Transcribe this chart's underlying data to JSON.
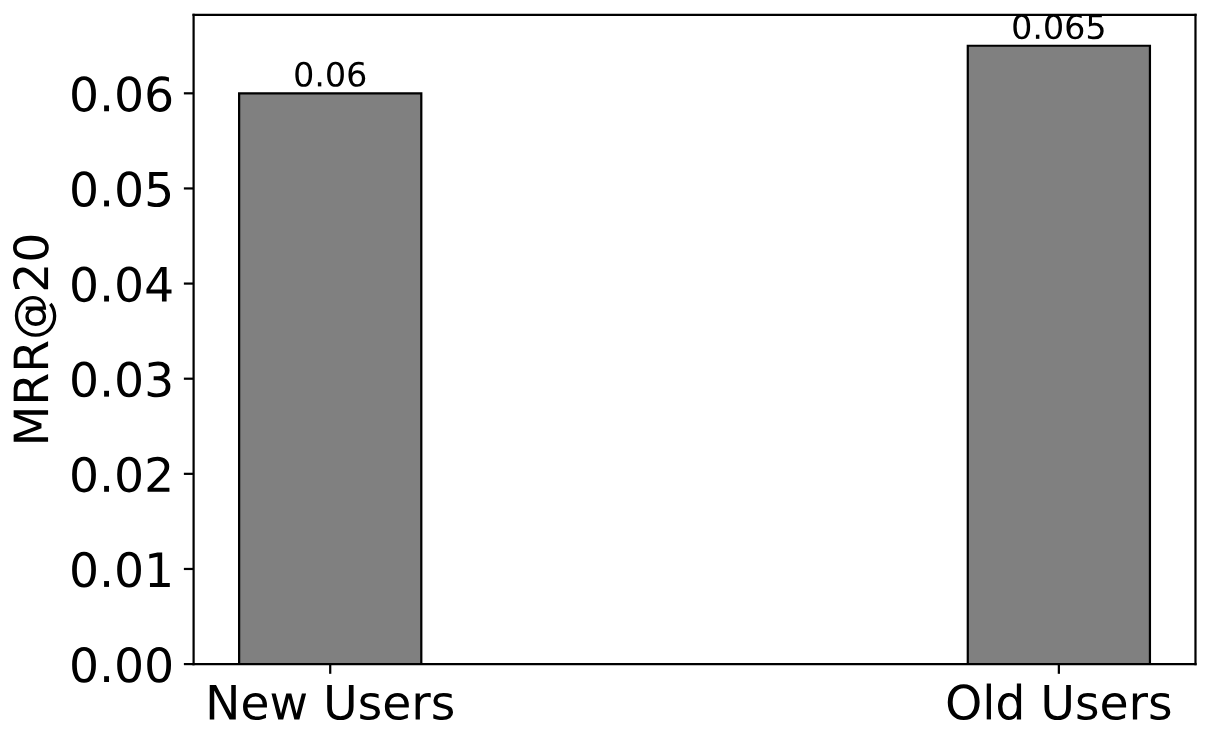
{
  "chart_data": {
    "type": "bar",
    "ylabel": "MRR@20",
    "categories": [
      "New Users",
      "Old Users"
    ],
    "values": [
      0.06,
      0.065
    ],
    "color": "#808080",
    "ylim": [
      0,
      0.06825
    ],
    "yticks": [
      {
        "value": 0,
        "label": "0.00"
      },
      {
        "value": 0.01,
        "label": "0.01"
      },
      {
        "value": 0.02,
        "label": "0.02"
      },
      {
        "value": 0.03,
        "label": "0.03"
      },
      {
        "value": 0.04,
        "label": "0.04"
      },
      {
        "value": 0.05,
        "label": "0.05"
      },
      {
        "value": 0.06,
        "label": "0.06"
      }
    ],
    "data_labels": true,
    "grid": false
  }
}
